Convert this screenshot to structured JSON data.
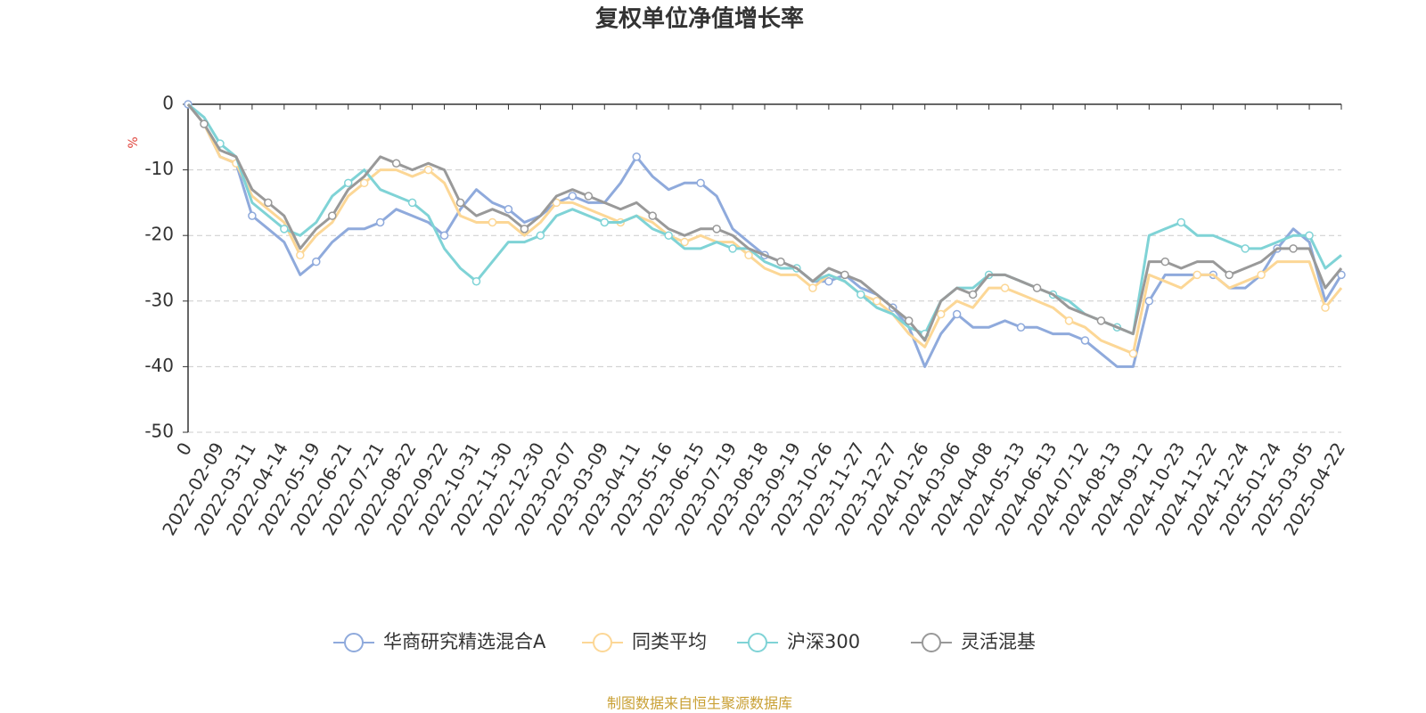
{
  "chart_data": {
    "type": "line",
    "title": "复权单位净值增长率",
    "y_label": "%",
    "source": "制图数据来自恒生聚源数据库",
    "categories": [
      "0",
      null,
      "2022-02-09",
      null,
      "2022-03-11",
      null,
      "2022-04-14",
      null,
      "2022-05-19",
      null,
      "2022-06-21",
      null,
      "2022-07-21",
      null,
      "2022-08-22",
      null,
      "2022-09-22",
      null,
      "2022-10-31",
      null,
      "2022-11-30",
      null,
      "2022-12-30",
      null,
      "2023-02-07",
      null,
      "2023-03-09",
      null,
      "2023-04-11",
      null,
      "2023-05-16",
      null,
      "2023-06-15",
      null,
      "2023-07-19",
      null,
      "2023-08-18",
      null,
      "2023-09-19",
      null,
      "2023-10-26",
      null,
      "2023-11-27",
      null,
      "2023-12-27",
      null,
      "2024-01-26",
      null,
      "2024-03-06",
      null,
      "2024-04-08",
      null,
      "2024-05-13",
      null,
      "2024-06-13",
      null,
      "2024-07-12",
      null,
      "2024-08-13",
      null,
      "2024-09-12",
      null,
      "2024-10-23",
      null,
      "2024-11-22",
      null,
      "2024-12-24",
      null,
      "2025-01-24",
      null,
      "2025-03-05",
      null,
      "2025-04-22"
    ],
    "series": [
      {
        "name": "华商研究精选混合A",
        "color": "#8faadc",
        "values": [
          0,
          -3,
          -8,
          -9,
          -17,
          -19,
          -21,
          -26,
          -24,
          -21,
          -19,
          -19,
          -18,
          -16,
          -17,
          -18,
          -20,
          -16,
          -13,
          -15,
          -16,
          -18,
          -17,
          -15,
          -14,
          -15,
          -15,
          -12,
          -8,
          -11,
          -13,
          -12,
          -12,
          -14,
          -19,
          -21,
          -23,
          -24,
          -25,
          -27,
          -27,
          -26,
          -28,
          -29,
          -31,
          -34,
          -40,
          -35,
          -32,
          -34,
          -34,
          -33,
          -34,
          -34,
          -35,
          -35,
          -36,
          -38,
          -40,
          -40,
          -30,
          -26,
          -26,
          -26,
          -26,
          -28,
          -28,
          -26,
          -22,
          -19,
          -21,
          -30,
          -26
        ]
      },
      {
        "name": "同类平均",
        "color": "#fcd796",
        "values": [
          0,
          -3,
          -8,
          -9,
          -14,
          -16,
          -18,
          -23,
          -20,
          -18,
          -14,
          -12,
          -10,
          -10,
          -11,
          -10,
          -12,
          -17,
          -18,
          -18,
          -18,
          -20,
          -18,
          -15,
          -15,
          -16,
          -17,
          -18,
          -17,
          -18,
          -20,
          -21,
          -20,
          -21,
          -21,
          -23,
          -25,
          -26,
          -26,
          -28,
          -26,
          -27,
          -29,
          -30,
          -32,
          -35,
          -37,
          -32,
          -30,
          -31,
          -28,
          -28,
          -29,
          -30,
          -31,
          -33,
          -34,
          -36,
          -37,
          -38,
          -26,
          -27,
          -28,
          -26,
          -26,
          -28,
          -27,
          -26,
          -24,
          -24,
          -24,
          -31,
          -28
        ]
      },
      {
        "name": "沪深300",
        "color": "#7fd3d6",
        "values": [
          0,
          -2,
          -6,
          -8,
          -15,
          -17,
          -19,
          -20,
          -18,
          -14,
          -12,
          -10,
          -13,
          -14,
          -15,
          -17,
          -22,
          -25,
          -27,
          -24,
          -21,
          -21,
          -20,
          -17,
          -16,
          -17,
          -18,
          -18,
          -17,
          -19,
          -20,
          -22,
          -22,
          -21,
          -22,
          -22,
          -24,
          -25,
          -25,
          -27,
          -26,
          -27,
          -29,
          -31,
          -32,
          -34,
          -35,
          -30,
          -28,
          -28,
          -26,
          -26,
          -27,
          -28,
          -29,
          -30,
          -32,
          -33,
          -34,
          -35,
          -20,
          -19,
          -18,
          -20,
          -20,
          -21,
          -22,
          -22,
          -21,
          -20,
          -20,
          -25,
          -23
        ]
      },
      {
        "name": "灵活混基",
        "color": "#999999",
        "values": [
          0,
          -3,
          -7,
          -8,
          -13,
          -15,
          -17,
          -22,
          -19,
          -17,
          -13,
          -11,
          -8,
          -9,
          -10,
          -9,
          -10,
          -15,
          -17,
          -16,
          -17,
          -19,
          -17,
          -14,
          -13,
          -14,
          -15,
          -16,
          -15,
          -17,
          -19,
          -20,
          -19,
          -19,
          -20,
          -22,
          -23,
          -24,
          -25,
          -27,
          -25,
          -26,
          -27,
          -29,
          -31,
          -33,
          -36,
          -30,
          -28,
          -29,
          -26,
          -26,
          -27,
          -28,
          -29,
          -31,
          -32,
          -33,
          -34,
          -35,
          -24,
          -24,
          -25,
          -24,
          -24,
          -26,
          -25,
          -24,
          -22,
          -22,
          -22,
          -28,
          -25
        ]
      }
    ],
    "ylim": [
      -50,
      0
    ],
    "yticks": [
      0,
      -10,
      -20,
      -30,
      -40,
      -50
    ],
    "grid": true
  }
}
